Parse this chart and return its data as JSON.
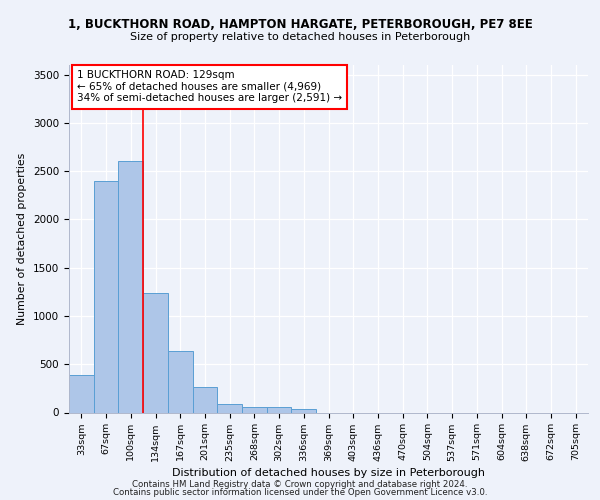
{
  "title_line1": "1, BUCKTHORN ROAD, HAMPTON HARGATE, PETERBOROUGH, PE7 8EE",
  "title_line2": "Size of property relative to detached houses in Peterborough",
  "xlabel": "Distribution of detached houses by size in Peterborough",
  "ylabel": "Number of detached properties",
  "footnote1": "Contains HM Land Registry data © Crown copyright and database right 2024.",
  "footnote2": "Contains public sector information licensed under the Open Government Licence v3.0.",
  "bar_labels": [
    "33sqm",
    "67sqm",
    "100sqm",
    "134sqm",
    "167sqm",
    "201sqm",
    "235sqm",
    "268sqm",
    "302sqm",
    "336sqm",
    "369sqm",
    "403sqm",
    "436sqm",
    "470sqm",
    "504sqm",
    "537sqm",
    "571sqm",
    "604sqm",
    "638sqm",
    "672sqm",
    "705sqm"
  ],
  "bar_values": [
    390,
    2400,
    2610,
    1240,
    640,
    260,
    90,
    58,
    55,
    38,
    0,
    0,
    0,
    0,
    0,
    0,
    0,
    0,
    0,
    0,
    0
  ],
  "bar_color": "#aec6e8",
  "bar_edge_color": "#5a9fd4",
  "ylim": [
    0,
    3600
  ],
  "yticks": [
    0,
    500,
    1000,
    1500,
    2000,
    2500,
    3000,
    3500
  ],
  "property_line_x": 3,
  "property_line_color": "red",
  "annotation_text": "1 BUCKTHORN ROAD: 129sqm\n← 65% of detached houses are smaller (4,969)\n34% of semi-detached houses are larger (2,591) →",
  "annotation_box_color": "white",
  "annotation_box_edge_color": "red",
  "background_color": "#eef2fa",
  "grid_color": "white"
}
